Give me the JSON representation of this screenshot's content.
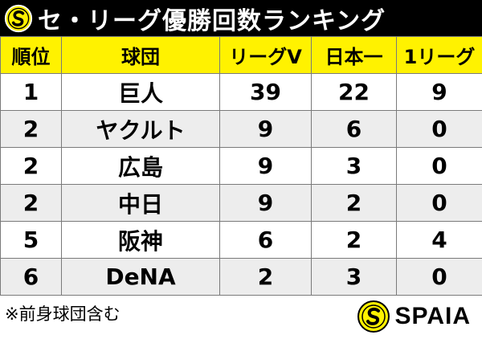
{
  "title": "セ・リーグ優勝回数ランキング",
  "columns": [
    "順位",
    "球団",
    "リーグV",
    "日本一",
    "1リーグ"
  ],
  "rows": [
    [
      "1",
      "巨人",
      "39",
      "22",
      "9"
    ],
    [
      "2",
      "ヤクルト",
      "9",
      "6",
      "0"
    ],
    [
      "2",
      "広島",
      "9",
      "3",
      "0"
    ],
    [
      "2",
      "中日",
      "9",
      "2",
      "0"
    ],
    [
      "5",
      "阪神",
      "6",
      "2",
      "4"
    ],
    [
      "6",
      "DeNA",
      "2",
      "3",
      "0"
    ]
  ],
  "footnote": "※前身球団含む",
  "brand": {
    "name": "SPAIA",
    "logo_icon": "spaia-logo-icon"
  },
  "colors": {
    "title_background": "#000000",
    "title_text": "#ffffff",
    "header_background": "#fff200",
    "row_alt_background": "#ededed",
    "logo_accent": "#fff200"
  }
}
